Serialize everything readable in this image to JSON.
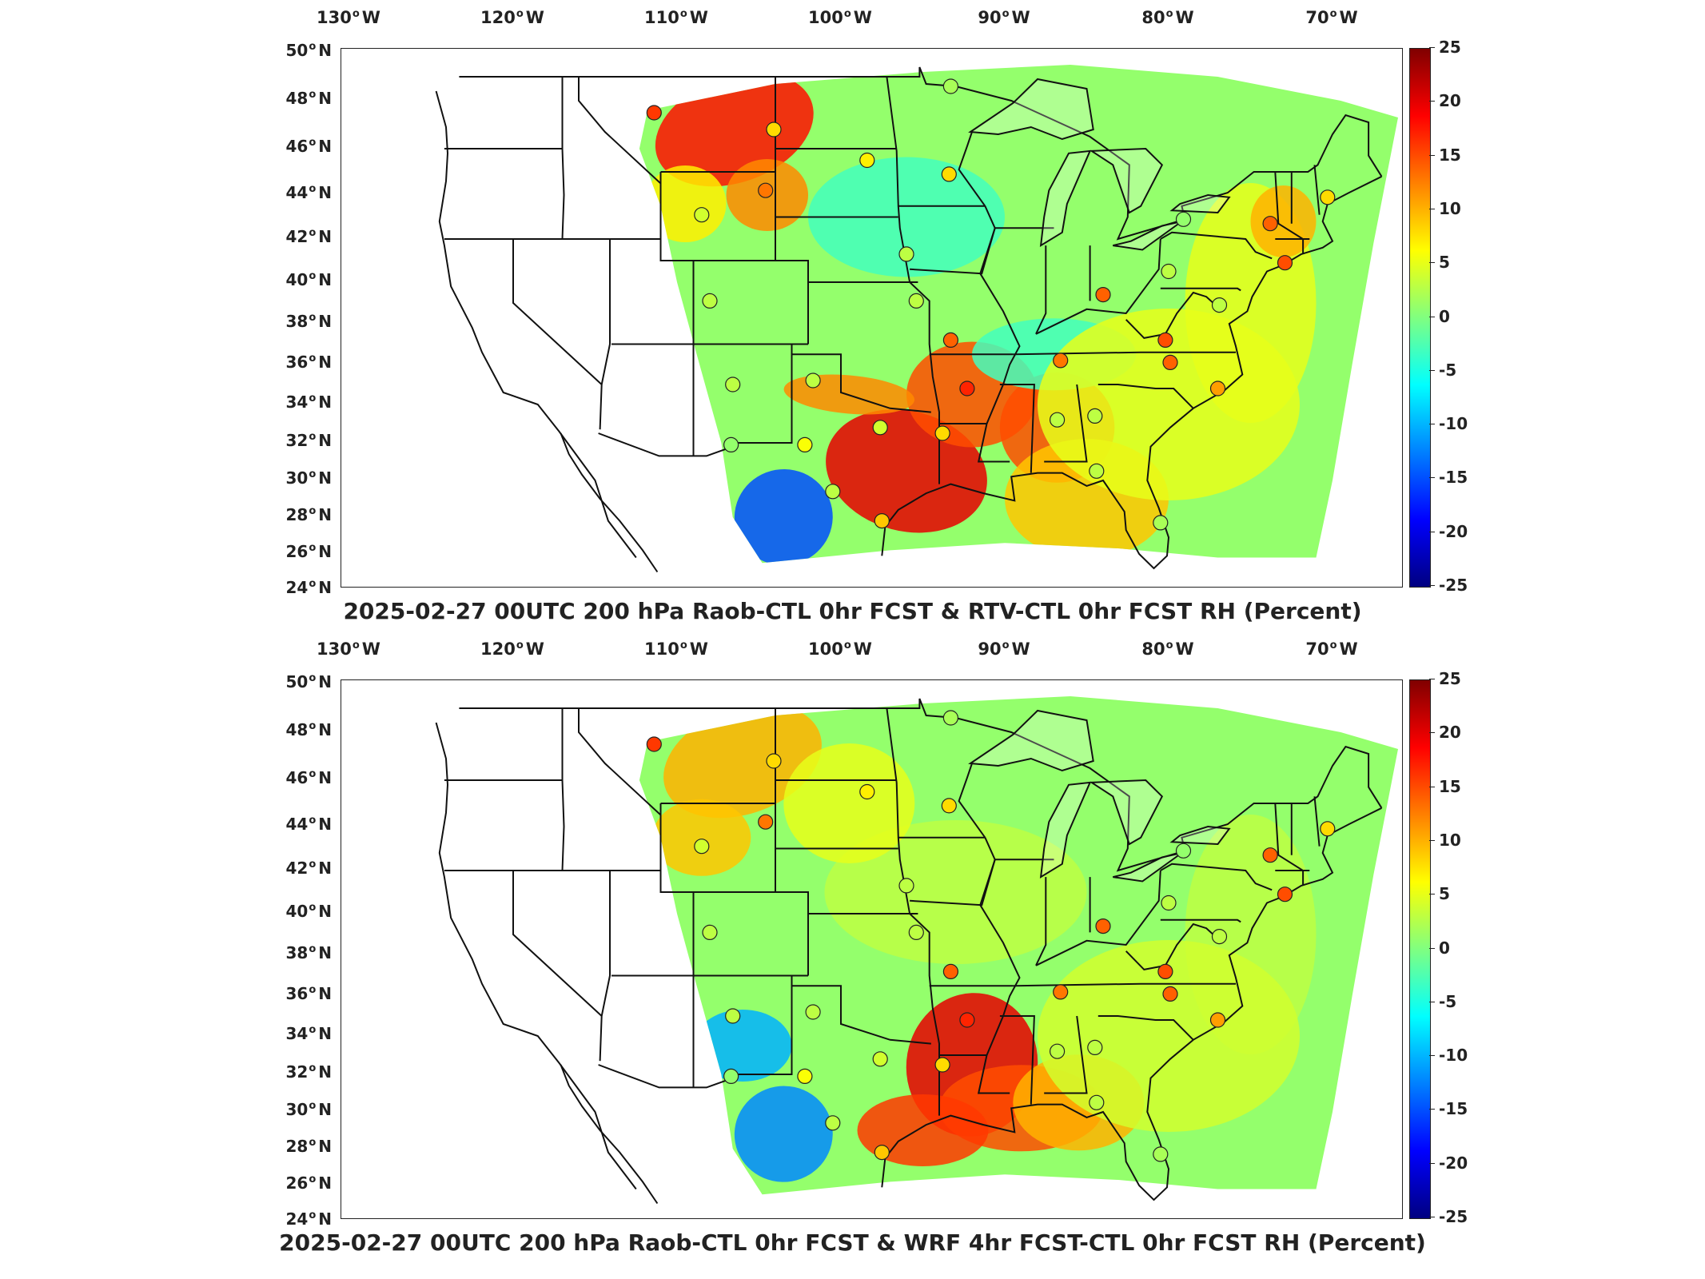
{
  "colorbar": {
    "ticks": [
      "25",
      "20",
      "15",
      "10",
      "5",
      "0",
      "-5",
      "-10",
      "-15",
      "-20",
      "-25"
    ],
    "colors": [
      "#800000",
      "#ff0000",
      "#ff8000",
      "#ffff00",
      "#80ff80",
      "#00ffff",
      "#0080ff",
      "#0000ff",
      "#000080"
    ]
  },
  "axes": {
    "lon_labels": [
      {
        "deg": "130",
        "hemi": "W"
      },
      {
        "deg": "120",
        "hemi": "W"
      },
      {
        "deg": "110",
        "hemi": "W"
      },
      {
        "deg": "100",
        "hemi": "W"
      },
      {
        "deg": "90",
        "hemi": "W"
      },
      {
        "deg": "80",
        "hemi": "W"
      },
      {
        "deg": "70",
        "hemi": "W"
      }
    ],
    "lat_labels": [
      {
        "deg": "50",
        "hemi": "N"
      },
      {
        "deg": "48",
        "hemi": "N"
      },
      {
        "deg": "46",
        "hemi": "N"
      },
      {
        "deg": "44",
        "hemi": "N"
      },
      {
        "deg": "42",
        "hemi": "N"
      },
      {
        "deg": "40",
        "hemi": "N"
      },
      {
        "deg": "38",
        "hemi": "N"
      },
      {
        "deg": "36",
        "hemi": "N"
      },
      {
        "deg": "34",
        "hemi": "N"
      },
      {
        "deg": "32",
        "hemi": "N"
      },
      {
        "deg": "30",
        "hemi": "N"
      },
      {
        "deg": "28",
        "hemi": "N"
      },
      {
        "deg": "26",
        "hemi": "N"
      },
      {
        "deg": "24",
        "hemi": "N"
      }
    ]
  },
  "panels": [
    {
      "title": "2025-02-27 00UTC 200 hPa Raob-CTL 0hr FCST & RTV-CTL 0hr FCST RH (Percent)",
      "stations": [
        {
          "lon": -111.4,
          "lat": 47.5,
          "v": 16
        },
        {
          "lon": -104.1,
          "lat": 46.8,
          "v": 8
        },
        {
          "lon": -98.4,
          "lat": 45.5,
          "v": 7
        },
        {
          "lon": -93.4,
          "lat": 44.9,
          "v": 8
        },
        {
          "lon": -93.3,
          "lat": 48.6,
          "v": 2
        },
        {
          "lon": -108.5,
          "lat": 43.1,
          "v": 4
        },
        {
          "lon": -104.6,
          "lat": 44.2,
          "v": 13
        },
        {
          "lon": -96.0,
          "lat": 41.3,
          "v": 3
        },
        {
          "lon": -108.0,
          "lat": 39.1,
          "v": 3
        },
        {
          "lon": -95.4,
          "lat": 39.1,
          "v": 3
        },
        {
          "lon": -93.3,
          "lat": 37.2,
          "v": 14
        },
        {
          "lon": -106.6,
          "lat": 35.0,
          "v": 3
        },
        {
          "lon": -101.7,
          "lat": 35.2,
          "v": 3
        },
        {
          "lon": -92.3,
          "lat": 34.8,
          "v": 17
        },
        {
          "lon": -97.6,
          "lat": 32.8,
          "v": 4
        },
        {
          "lon": -102.2,
          "lat": 31.9,
          "v": 6
        },
        {
          "lon": -106.7,
          "lat": 31.9,
          "v": 1
        },
        {
          "lon": -93.8,
          "lat": 32.5,
          "v": 8
        },
        {
          "lon": -100.5,
          "lat": 29.4,
          "v": 3
        },
        {
          "lon": -97.5,
          "lat": 27.8,
          "v": 9
        },
        {
          "lon": -86.8,
          "lat": 33.2,
          "v": 3
        },
        {
          "lon": -84.5,
          "lat": 33.4,
          "v": 3
        },
        {
          "lon": -84.4,
          "lat": 30.5,
          "v": 3
        },
        {
          "lon": -80.5,
          "lat": 27.7,
          "v": 2
        },
        {
          "lon": -86.6,
          "lat": 36.2,
          "v": 13
        },
        {
          "lon": -84.0,
          "lat": 39.4,
          "v": 14
        },
        {
          "lon": -80.0,
          "lat": 40.5,
          "v": 3
        },
        {
          "lon": -80.2,
          "lat": 37.2,
          "v": 15
        },
        {
          "lon": -79.9,
          "lat": 36.1,
          "v": 14
        },
        {
          "lon": -77.0,
          "lat": 34.8,
          "v": 11
        },
        {
          "lon": -79.1,
          "lat": 42.9,
          "v": 1
        },
        {
          "lon": -73.8,
          "lat": 42.7,
          "v": 14
        },
        {
          "lon": -72.9,
          "lat": 40.9,
          "v": 15
        },
        {
          "lon": -70.3,
          "lat": 43.9,
          "v": 8
        },
        {
          "lon": -76.9,
          "lat": 38.9,
          "v": 3
        }
      ]
    },
    {
      "title": "2025-02-27 00UTC 200 hPa Raob-CTL 0hr FCST & WRF 4hr FCST-CTL 0hr FCST RH (Percent)",
      "stations": [
        {
          "lon": -111.4,
          "lat": 47.5,
          "v": 16
        },
        {
          "lon": -104.1,
          "lat": 46.8,
          "v": 8
        },
        {
          "lon": -98.4,
          "lat": 45.5,
          "v": 7
        },
        {
          "lon": -93.4,
          "lat": 44.9,
          "v": 8
        },
        {
          "lon": -93.3,
          "lat": 48.6,
          "v": 2
        },
        {
          "lon": -108.5,
          "lat": 43.1,
          "v": 4
        },
        {
          "lon": -104.6,
          "lat": 44.2,
          "v": 13
        },
        {
          "lon": -96.0,
          "lat": 41.3,
          "v": 3
        },
        {
          "lon": -108.0,
          "lat": 39.1,
          "v": 3
        },
        {
          "lon": -95.4,
          "lat": 39.1,
          "v": 3
        },
        {
          "lon": -93.3,
          "lat": 37.2,
          "v": 14
        },
        {
          "lon": -106.6,
          "lat": 35.0,
          "v": 3
        },
        {
          "lon": -101.7,
          "lat": 35.2,
          "v": 3
        },
        {
          "lon": -92.3,
          "lat": 34.8,
          "v": 17
        },
        {
          "lon": -97.6,
          "lat": 32.8,
          "v": 4
        },
        {
          "lon": -102.2,
          "lat": 31.9,
          "v": 6
        },
        {
          "lon": -106.7,
          "lat": 31.9,
          "v": 1
        },
        {
          "lon": -93.8,
          "lat": 32.5,
          "v": 8
        },
        {
          "lon": -100.5,
          "lat": 29.4,
          "v": 3
        },
        {
          "lon": -97.5,
          "lat": 27.8,
          "v": 9
        },
        {
          "lon": -86.8,
          "lat": 33.2,
          "v": 3
        },
        {
          "lon": -84.5,
          "lat": 33.4,
          "v": 3
        },
        {
          "lon": -84.4,
          "lat": 30.5,
          "v": 3
        },
        {
          "lon": -80.5,
          "lat": 27.7,
          "v": 2
        },
        {
          "lon": -86.6,
          "lat": 36.2,
          "v": 13
        },
        {
          "lon": -84.0,
          "lat": 39.4,
          "v": 14
        },
        {
          "lon": -80.0,
          "lat": 40.5,
          "v": 3
        },
        {
          "lon": -80.2,
          "lat": 37.2,
          "v": 15
        },
        {
          "lon": -79.9,
          "lat": 36.1,
          "v": 14
        },
        {
          "lon": -77.0,
          "lat": 34.8,
          "v": 11
        },
        {
          "lon": -79.1,
          "lat": 42.9,
          "v": 1
        },
        {
          "lon": -73.8,
          "lat": 42.7,
          "v": 14
        },
        {
          "lon": -72.9,
          "lat": 40.9,
          "v": 15
        },
        {
          "lon": -70.3,
          "lat": 43.9,
          "v": 8
        },
        {
          "lon": -76.9,
          "lat": 38.9,
          "v": 3
        }
      ]
    }
  ]
}
